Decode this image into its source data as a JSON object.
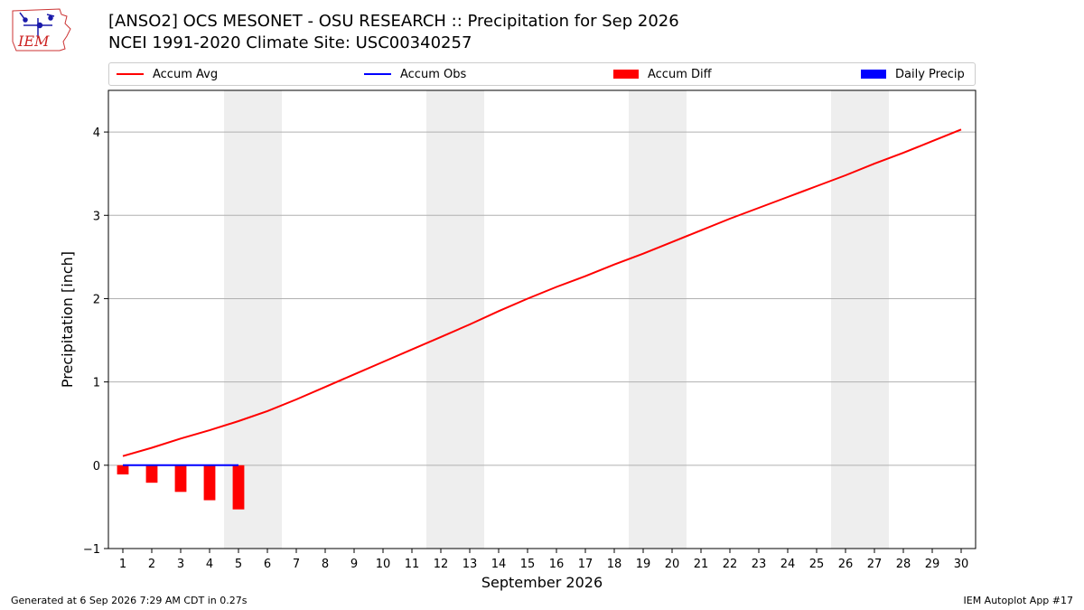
{
  "header": {
    "title_line1": "[ANSO2] OCS MESONET - OSU RESEARCH :: Precipitation for Sep 2026",
    "title_line2": "NCEI 1991-2020 Climate Site: USC00340257",
    "logo_text": "IEM"
  },
  "legend": {
    "items": [
      {
        "label": "Accum Avg",
        "kind": "line",
        "color": "#ff0000"
      },
      {
        "label": "Accum Obs",
        "kind": "line",
        "color": "#0000ff"
      },
      {
        "label": "Accum Diff",
        "kind": "rect",
        "color": "#ff0000"
      },
      {
        "label": "Daily Precip",
        "kind": "rect",
        "color": "#0000ff"
      }
    ]
  },
  "chart_data": {
    "type": "line",
    "xlabel": "September 2026",
    "ylabel": "Precipitation [inch]",
    "xlim": [
      0.5,
      30.5
    ],
    "ylim": [
      -1.0,
      4.5
    ],
    "yticks": [
      -1,
      0,
      1,
      2,
      3,
      4
    ],
    "ytick_labels": [
      "−1",
      "0",
      "1",
      "2",
      "3",
      "4"
    ],
    "xticks": [
      1,
      2,
      3,
      4,
      5,
      6,
      7,
      8,
      9,
      10,
      11,
      12,
      13,
      14,
      15,
      16,
      17,
      18,
      19,
      20,
      21,
      22,
      23,
      24,
      25,
      26,
      27,
      28,
      29,
      30
    ],
    "grid": "horizontal",
    "weekend_bands": [
      [
        5,
        6
      ],
      [
        12,
        13
      ],
      [
        19,
        20
      ],
      [
        26,
        27
      ]
    ],
    "weekend_color": "#eeeeee",
    "series": [
      {
        "name": "Accum Avg",
        "type": "line",
        "color": "#ff0000",
        "x": [
          1,
          2,
          3,
          4,
          5,
          6,
          7,
          8,
          9,
          10,
          11,
          12,
          13,
          14,
          15,
          16,
          17,
          18,
          19,
          20,
          21,
          22,
          23,
          24,
          25,
          26,
          27,
          28,
          29,
          30
        ],
        "values": [
          0.11,
          0.21,
          0.32,
          0.42,
          0.53,
          0.65,
          0.79,
          0.94,
          1.09,
          1.24,
          1.39,
          1.54,
          1.69,
          1.85,
          2.0,
          2.14,
          2.27,
          2.41,
          2.54,
          2.68,
          2.82,
          2.96,
          3.09,
          3.22,
          3.35,
          3.48,
          3.62,
          3.75,
          3.89,
          4.03
        ]
      },
      {
        "name": "Accum Obs",
        "type": "line",
        "color": "#0000ff",
        "x": [
          1,
          2,
          3,
          4,
          5
        ],
        "values": [
          0,
          0,
          0,
          0,
          0
        ]
      },
      {
        "name": "Accum Diff",
        "type": "bar",
        "color": "#ff0000",
        "x": [
          1,
          2,
          3,
          4,
          5
        ],
        "values": [
          -0.11,
          -0.21,
          -0.32,
          -0.42,
          -0.53
        ]
      },
      {
        "name": "Daily Precip",
        "type": "bar",
        "color": "#0000ff",
        "x": [
          1,
          2,
          3,
          4,
          5
        ],
        "values": [
          0,
          0,
          0,
          0,
          0
        ]
      }
    ]
  },
  "footer": {
    "left": "Generated at 6 Sep 2026 7:29 AM CDT in 0.27s",
    "right": "IEM Autoplot App #17"
  }
}
